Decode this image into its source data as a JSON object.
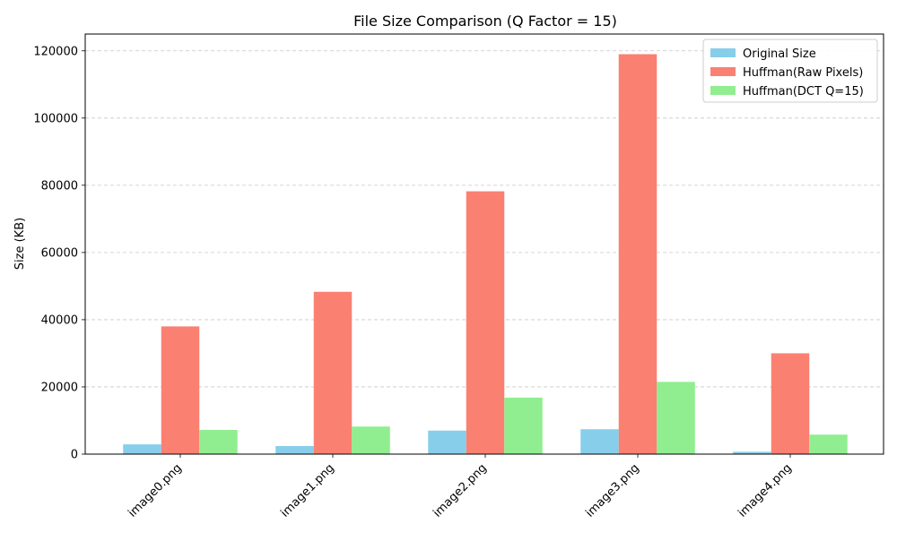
{
  "chart_data": {
    "type": "bar",
    "title": "File Size Comparison (Q Factor = 15)",
    "xlabel": "",
    "ylabel": "Size (KB)",
    "categories": [
      "image0.png",
      "image1.png",
      "image2.png",
      "image3.png",
      "image4.png"
    ],
    "series": [
      {
        "name": "Original Size",
        "color": "#87ceeb",
        "values": [
          2900,
          2400,
          7000,
          7400,
          700
        ]
      },
      {
        "name": "Huffman(Raw Pixels)",
        "color": "#fa8072",
        "values": [
          38000,
          48300,
          78200,
          119000,
          30000
        ]
      },
      {
        "name": "Huffman(DCT Q=15)",
        "color": "#90ee90",
        "values": [
          7200,
          8200,
          16800,
          21500,
          5800
        ]
      }
    ],
    "ylim": [
      0,
      125000
    ],
    "yticks": [
      0,
      20000,
      40000,
      60000,
      80000,
      100000,
      120000
    ],
    "ytick_labels": [
      "0",
      "20000",
      "40000",
      "60000",
      "80000",
      "100000",
      "120000"
    ],
    "grid": "y-dashed",
    "legend": "top-right"
  }
}
